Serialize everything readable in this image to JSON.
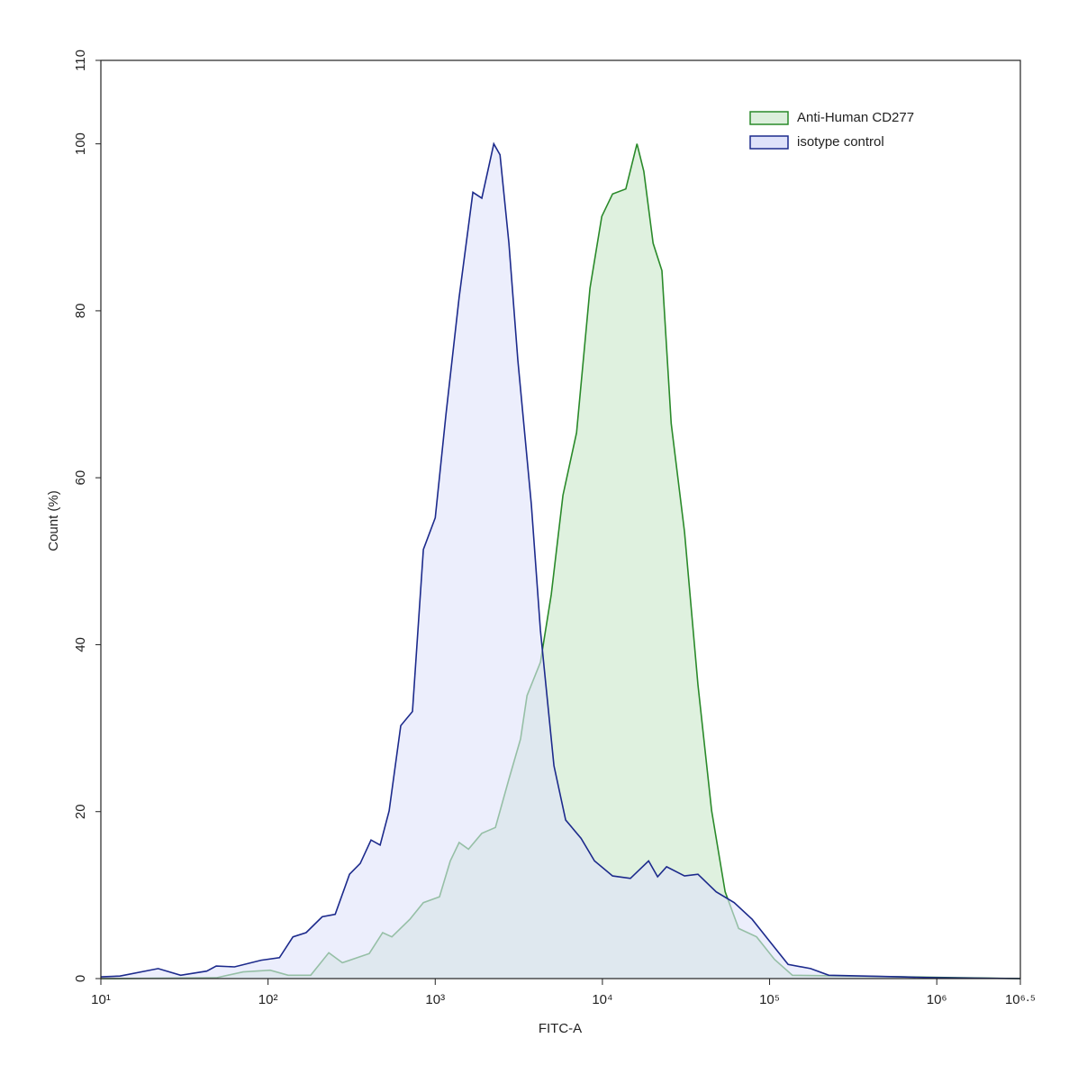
{
  "chart_data": {
    "type": "histogram-overlay",
    "xlabel": "FITC-A",
    "ylabel": "Count (%)",
    "xscale": "log",
    "xlim": [
      10,
      3162277.66
    ],
    "xticks": [
      {
        "value": 10,
        "label": "10¹"
      },
      {
        "value": 100,
        "label": "10²"
      },
      {
        "value": 1000,
        "label": "10³"
      },
      {
        "value": 10000,
        "label": "10⁴"
      },
      {
        "value": 100000,
        "label": "10⁵"
      },
      {
        "value": 1000000,
        "label": "10⁶"
      },
      {
        "value": 3162277.66,
        "label": "10⁶·⁵"
      }
    ],
    "ylim": [
      0,
      110
    ],
    "yticks": [
      0,
      20,
      40,
      60,
      80,
      100,
      110
    ],
    "legend": "upper right",
    "series": [
      {
        "name": "Anti-Human CD277",
        "color": "#2a8a2a",
        "fill": "#dcefdc",
        "x": [
          10,
          49,
          71,
          103,
          132,
          180,
          231,
          278,
          403,
          485,
          550,
          705,
          849,
          1060,
          1230,
          1390,
          1580,
          1900,
          2290,
          2760,
          3240,
          3540,
          4260,
          4940,
          5810,
          7000,
          8430,
          9910,
          11500,
          13800,
          16100,
          17700,
          20100,
          22700,
          25800,
          31000,
          37300,
          45000,
          54200,
          65300,
          83600,
          107000,
          137000,
          3162000
        ],
        "values": [
          0,
          0.1,
          0.8,
          1.0,
          0.4,
          0.4,
          3.1,
          1.9,
          3.0,
          5.5,
          5.0,
          7.1,
          9.1,
          9.8,
          14.1,
          16.3,
          15.5,
          17.4,
          18.1,
          23.9,
          28.7,
          33.9,
          37.9,
          46.0,
          57.9,
          65.4,
          82.7,
          91.3,
          94.0,
          94.6,
          100,
          96.7,
          88.1,
          84.8,
          66.5,
          53.5,
          35.2,
          20.1,
          10.4,
          6.0,
          5.0,
          2.3,
          0.4,
          0
        ]
      },
      {
        "name": "isotype control",
        "color": "#1c2a8c",
        "fill": "#dfe2fa",
        "x": [
          10,
          13,
          22,
          30,
          43,
          49,
          63,
          91,
          117,
          141,
          169,
          211,
          252,
          307,
          356,
          413,
          468,
          530,
          622,
          731,
          849,
          1000,
          1160,
          1390,
          1680,
          1900,
          2240,
          2440,
          2760,
          3120,
          3760,
          4260,
          5130,
          6030,
          7450,
          8970,
          11500,
          14700,
          18900,
          21400,
          24200,
          31000,
          37300,
          47900,
          61400,
          78700,
          100700,
          129000,
          176000,
          226000,
          608000,
          998000,
          3162000
        ],
        "values": [
          0.2,
          0.3,
          1.2,
          0.4,
          0.9,
          1.5,
          1.4,
          2.2,
          2.5,
          5.0,
          5.5,
          7.4,
          7.7,
          12.5,
          13.8,
          16.6,
          16.0,
          20.1,
          30.3,
          32.0,
          51.4,
          55.2,
          67.6,
          81.6,
          94.2,
          93.5,
          100,
          98.7,
          88.1,
          74.1,
          56.8,
          41.7,
          25.5,
          19.0,
          16.8,
          14.1,
          12.3,
          12.0,
          14.1,
          12.2,
          13.4,
          12.3,
          12.5,
          10.4,
          9.1,
          7.1,
          4.4,
          1.7,
          1.2,
          0.4,
          0.2,
          0.1,
          0
        ]
      }
    ]
  }
}
